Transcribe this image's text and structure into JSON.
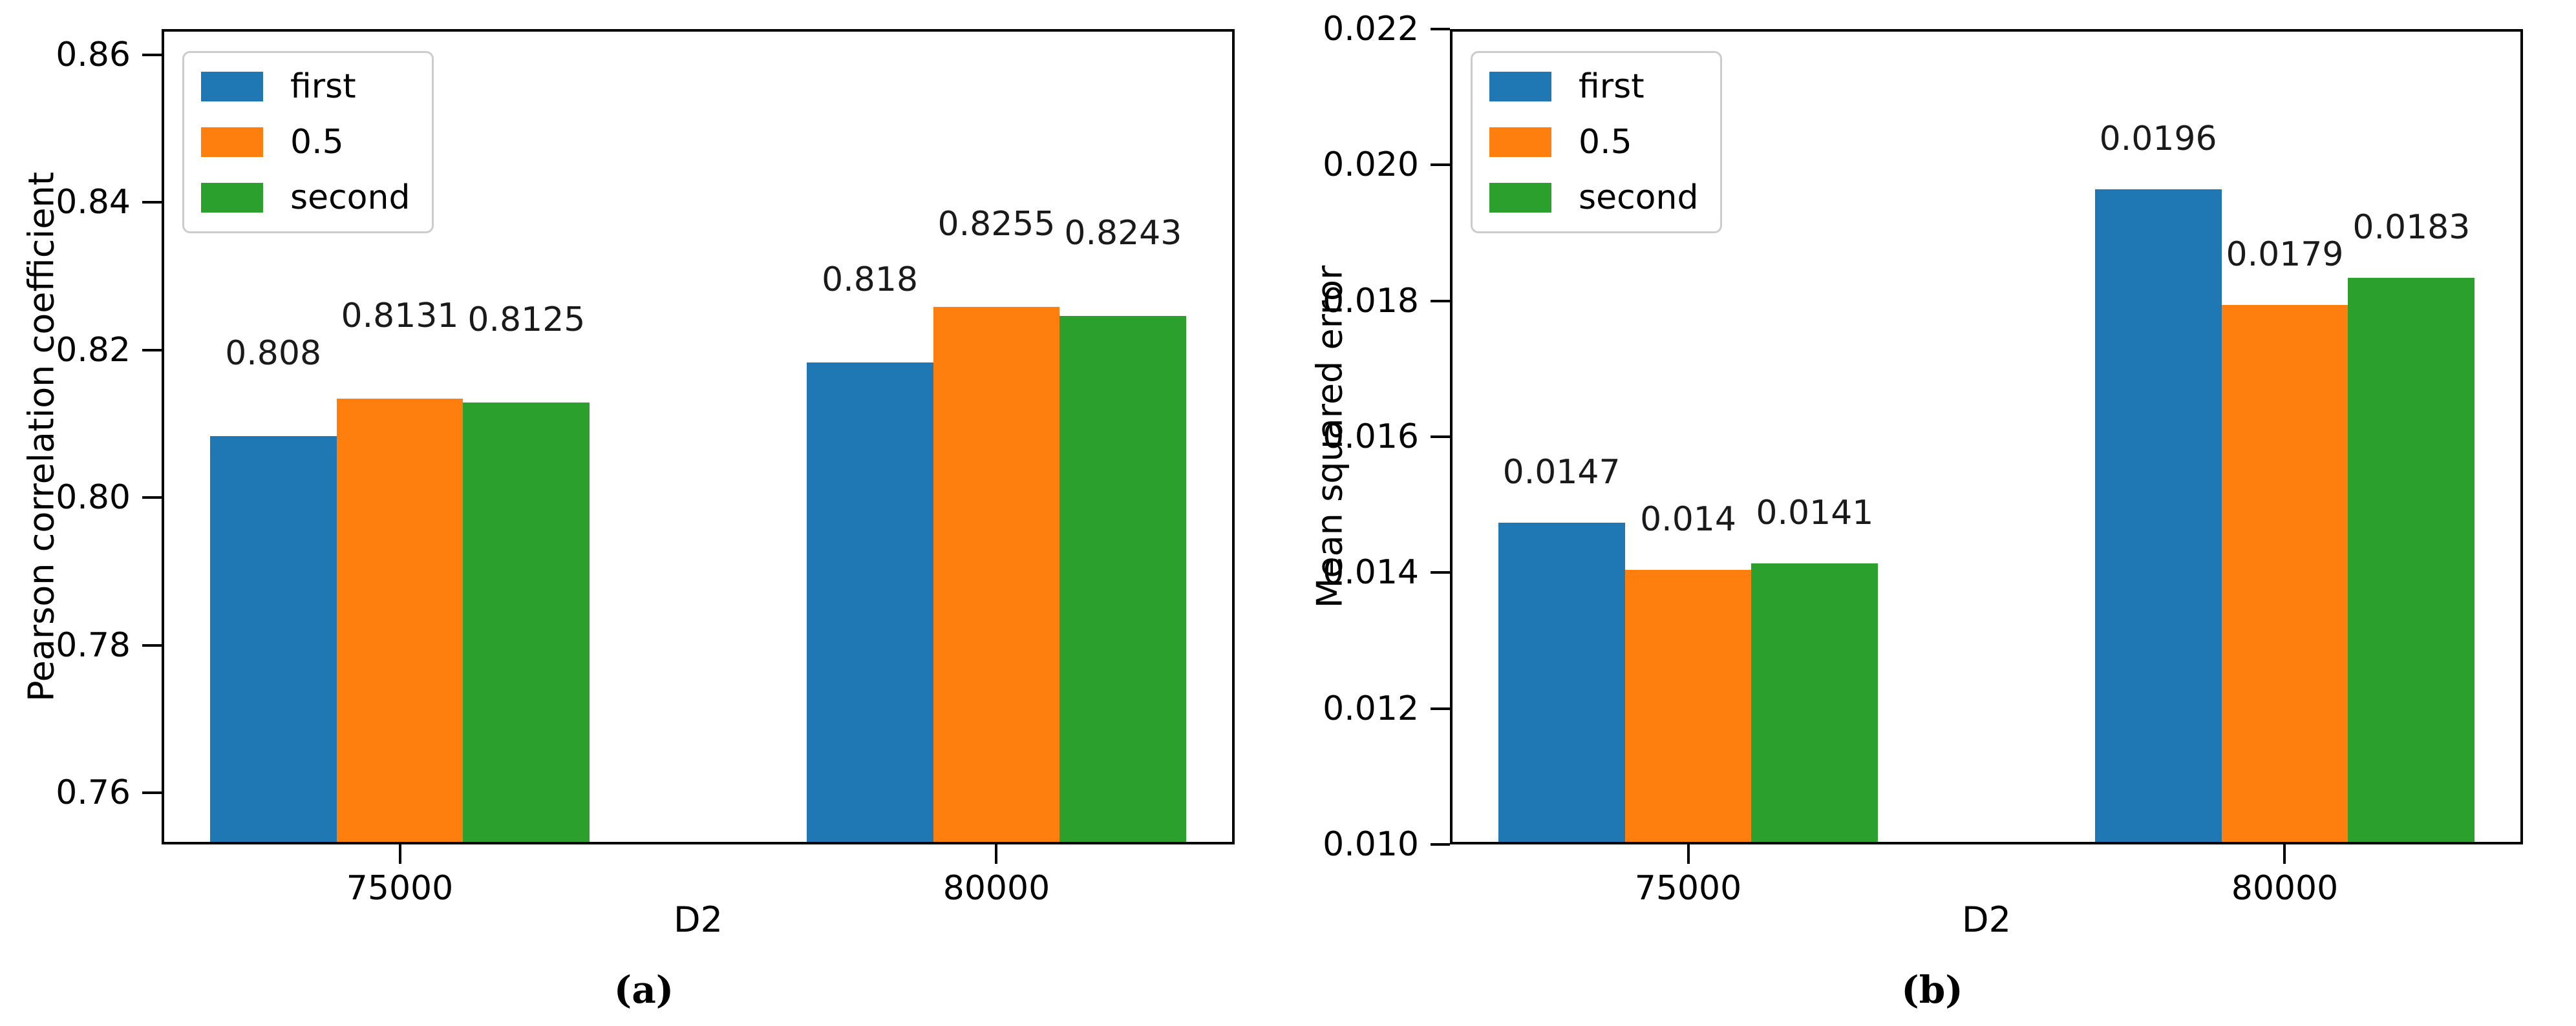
{
  "page": {
    "background_color": "#ffffff",
    "text_color": "#000000",
    "figure_captions": [
      "(a)",
      "(b)"
    ]
  },
  "chart_data": [
    {
      "type": "bar",
      "caption": "(a)",
      "title": "",
      "xlabel": "D2",
      "ylabel": "Pearson correlation coefficient",
      "categories": [
        "75000",
        "80000"
      ],
      "series": [
        {
          "name": "first",
          "color": "#1f77b4",
          "values": [
            0.808,
            0.818
          ],
          "value_labels": [
            "0.808",
            "0.818"
          ]
        },
        {
          "name": "0.5",
          "color": "#ff7f0e",
          "values": [
            0.8131,
            0.8255
          ],
          "value_labels": [
            "0.8131",
            "0.8255"
          ]
        },
        {
          "name": "second",
          "color": "#2ca02c",
          "values": [
            0.8125,
            0.8243
          ],
          "value_labels": [
            "0.8125",
            "0.8243"
          ]
        }
      ],
      "ylim": [
        0.753,
        0.8635
      ],
      "yticks": [
        {
          "value": 0.76,
          "label": "0.76"
        },
        {
          "value": 0.78,
          "label": "0.78"
        },
        {
          "value": 0.8,
          "label": "0.80"
        },
        {
          "value": 0.82,
          "label": "0.82"
        },
        {
          "value": 0.84,
          "label": "0.84"
        },
        {
          "value": 0.86,
          "label": "0.86"
        }
      ],
      "legend": {
        "position": "upper left",
        "entries": [
          "first",
          "0.5",
          "second"
        ]
      },
      "grid": false
    },
    {
      "type": "bar",
      "caption": "(b)",
      "title": "",
      "xlabel": "D2",
      "ylabel": "Mean squared error",
      "categories": [
        "75000",
        "80000"
      ],
      "series": [
        {
          "name": "first",
          "color": "#1f77b4",
          "values": [
            0.0147,
            0.0196
          ],
          "value_labels": [
            "0.0147",
            "0.0196"
          ]
        },
        {
          "name": "0.5",
          "color": "#ff7f0e",
          "values": [
            0.014,
            0.0179
          ],
          "value_labels": [
            "0.014",
            "0.0179"
          ]
        },
        {
          "name": "second",
          "color": "#2ca02c",
          "values": [
            0.0141,
            0.0183
          ],
          "value_labels": [
            "0.0141",
            "0.0183"
          ]
        }
      ],
      "ylim": [
        0.01,
        0.022
      ],
      "yticks": [
        {
          "value": 0.01,
          "label": "0.010"
        },
        {
          "value": 0.012,
          "label": "0.012"
        },
        {
          "value": 0.014,
          "label": "0.014"
        },
        {
          "value": 0.016,
          "label": "0.016"
        },
        {
          "value": 0.018,
          "label": "0.018"
        },
        {
          "value": 0.02,
          "label": "0.020"
        },
        {
          "value": 0.022,
          "label": "0.022"
        }
      ],
      "legend": {
        "position": "upper left",
        "entries": [
          "first",
          "0.5",
          "second"
        ]
      },
      "grid": false
    }
  ]
}
